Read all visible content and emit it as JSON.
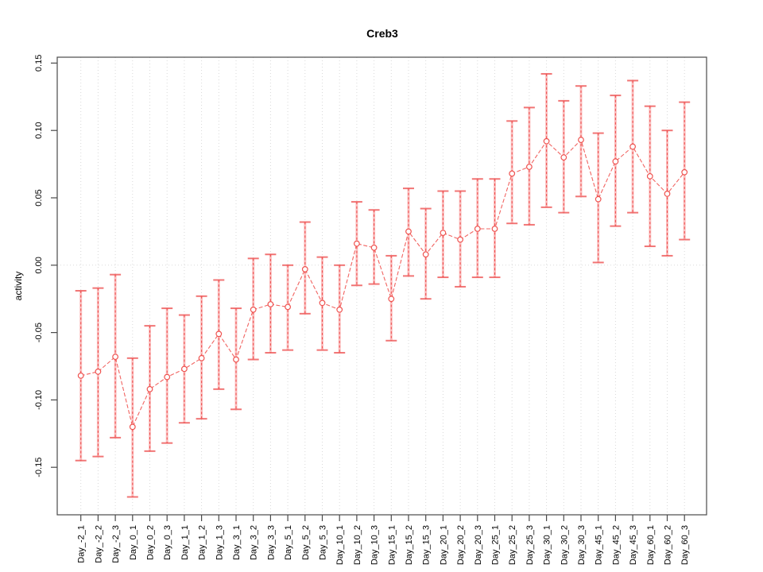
{
  "chart_data": {
    "type": "line",
    "title": "Creb3",
    "xlabel": "",
    "ylabel": "activity",
    "ylim": [
      -0.18,
      0.155
    ],
    "yticks": [
      "-0.15",
      "-0.10",
      "-0.05",
      "0.00",
      "0.05",
      "0.10",
      "0.15"
    ],
    "zero_reference_line": true,
    "grid": "vertical-dotted-per-category",
    "legend": "none",
    "marker": "open-circle",
    "line_style": "dashed",
    "categories": [
      "Day_-2_1",
      "Day_-2_2",
      "Day_-2_3",
      "Day_0_1",
      "Day_0_2",
      "Day_0_3",
      "Day_1_1",
      "Day_1_2",
      "Day_1_3",
      "Day_3_1",
      "Day_3_2",
      "Day_3_3",
      "Day_5_1",
      "Day_5_2",
      "Day_5_3",
      "Day_10_1",
      "Day_10_2",
      "Day_10_3",
      "Day_15_1",
      "Day_15_2",
      "Day_15_3",
      "Day_20_1",
      "Day_20_2",
      "Day_20_3",
      "Day_25_1",
      "Day_25_2",
      "Day_25_3",
      "Day_30_1",
      "Day_30_2",
      "Day_30_3",
      "Day_45_1",
      "Day_45_2",
      "Day_45_3",
      "Day_60_1",
      "Day_60_2",
      "Day_60_3"
    ],
    "series": [
      {
        "name": "activity",
        "values": [
          -0.082,
          -0.079,
          -0.068,
          -0.12,
          -0.092,
          -0.083,
          -0.077,
          -0.069,
          -0.051,
          -0.07,
          -0.033,
          -0.029,
          -0.031,
          -0.003,
          -0.028,
          -0.033,
          0.016,
          0.013,
          -0.025,
          0.025,
          0.008,
          0.024,
          0.019,
          0.027,
          0.027,
          0.068,
          0.073,
          0.092,
          0.08,
          0.093,
          0.049,
          0.077,
          0.088,
          0.066,
          0.053,
          0.069
        ],
        "error_high": [
          -0.019,
          -0.017,
          -0.007,
          -0.069,
          -0.045,
          -0.032,
          -0.037,
          -0.023,
          -0.011,
          -0.032,
          0.005,
          0.008,
          0.0,
          0.032,
          0.006,
          0.0,
          0.047,
          0.041,
          0.007,
          0.057,
          0.042,
          0.055,
          0.055,
          0.064,
          0.064,
          0.107,
          0.117,
          0.142,
          0.122,
          0.133,
          0.098,
          0.126,
          0.137,
          0.118,
          0.1,
          0.121
        ],
        "error_low": [
          -0.145,
          -0.142,
          -0.128,
          -0.172,
          -0.138,
          -0.132,
          -0.117,
          -0.114,
          -0.092,
          -0.107,
          -0.07,
          -0.065,
          -0.063,
          -0.036,
          -0.063,
          -0.065,
          -0.015,
          -0.014,
          -0.056,
          -0.008,
          -0.025,
          -0.009,
          -0.016,
          -0.009,
          -0.009,
          0.031,
          0.03,
          0.043,
          0.039,
          0.051,
          0.002,
          0.029,
          0.039,
          0.014,
          0.007,
          0.019
        ]
      }
    ],
    "colors": {
      "series": "#ef5350",
      "error_bar_soft": "#fba1a1",
      "error_bar_dash": "#ee5353",
      "gridline": "#d9d9d9",
      "frame": "#4a4a4a",
      "background": "#ffffff"
    }
  }
}
